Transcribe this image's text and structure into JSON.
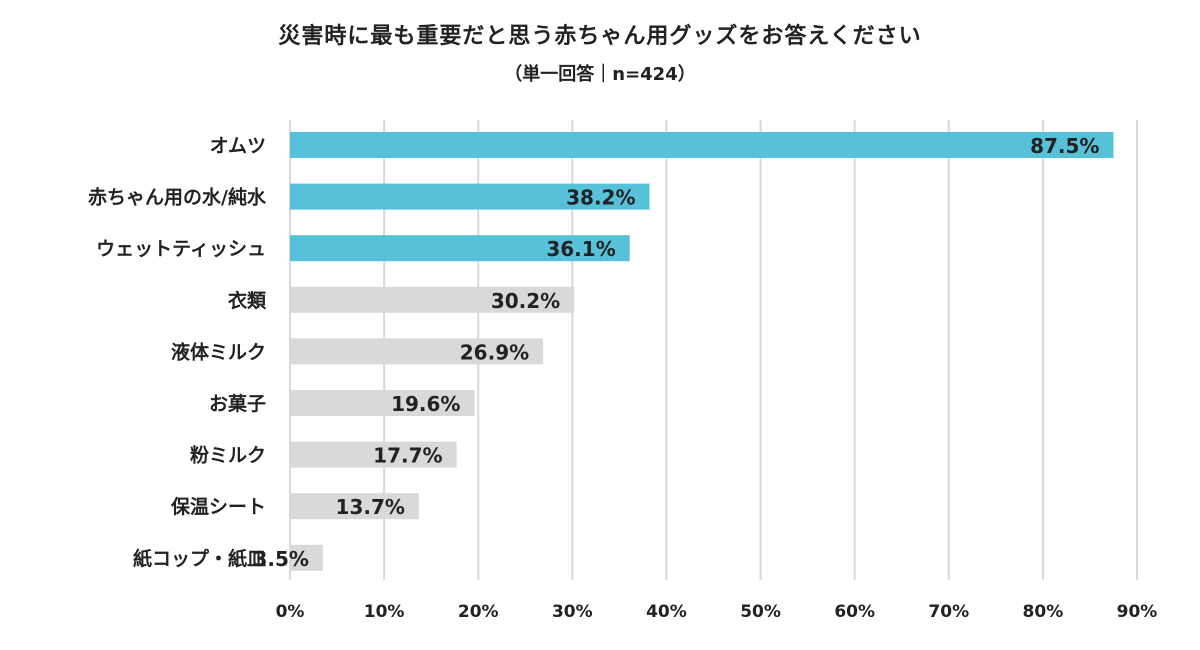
{
  "chart_data": {
    "type": "bar",
    "orientation": "horizontal",
    "title": "災害時に最も重要だと思う赤ちゃん用グッズをお答えください",
    "subtitle": "（単一回答｜n=424）",
    "categories": [
      "オムツ",
      "赤ちゃん用の水/純水",
      "ウェットティッシュ",
      "衣類",
      "液体ミルク",
      "お菓子",
      "粉ミルク",
      "保温シート",
      "紙コップ・紙皿"
    ],
    "values": [
      87.5,
      38.2,
      36.1,
      30.2,
      26.9,
      19.6,
      17.7,
      13.7,
      3.5
    ],
    "data_labels": [
      "87.5%",
      "38.2%",
      "36.1%",
      "30.2%",
      "26.9%",
      "19.6%",
      "17.7%",
      "13.7%",
      "3.5%"
    ],
    "xlim": [
      0,
      90
    ],
    "x_ticks": [
      "0%",
      "10%",
      "20%",
      "30%",
      "40%",
      "50%",
      "60%",
      "70%",
      "80%",
      "90%"
    ],
    "grid": "vertical",
    "highlight_top_n": 3,
    "colors": {
      "highlight": "#57c1da",
      "default": "#d9d9d9",
      "grid": "#d9d9d9",
      "text": "#222222"
    }
  }
}
